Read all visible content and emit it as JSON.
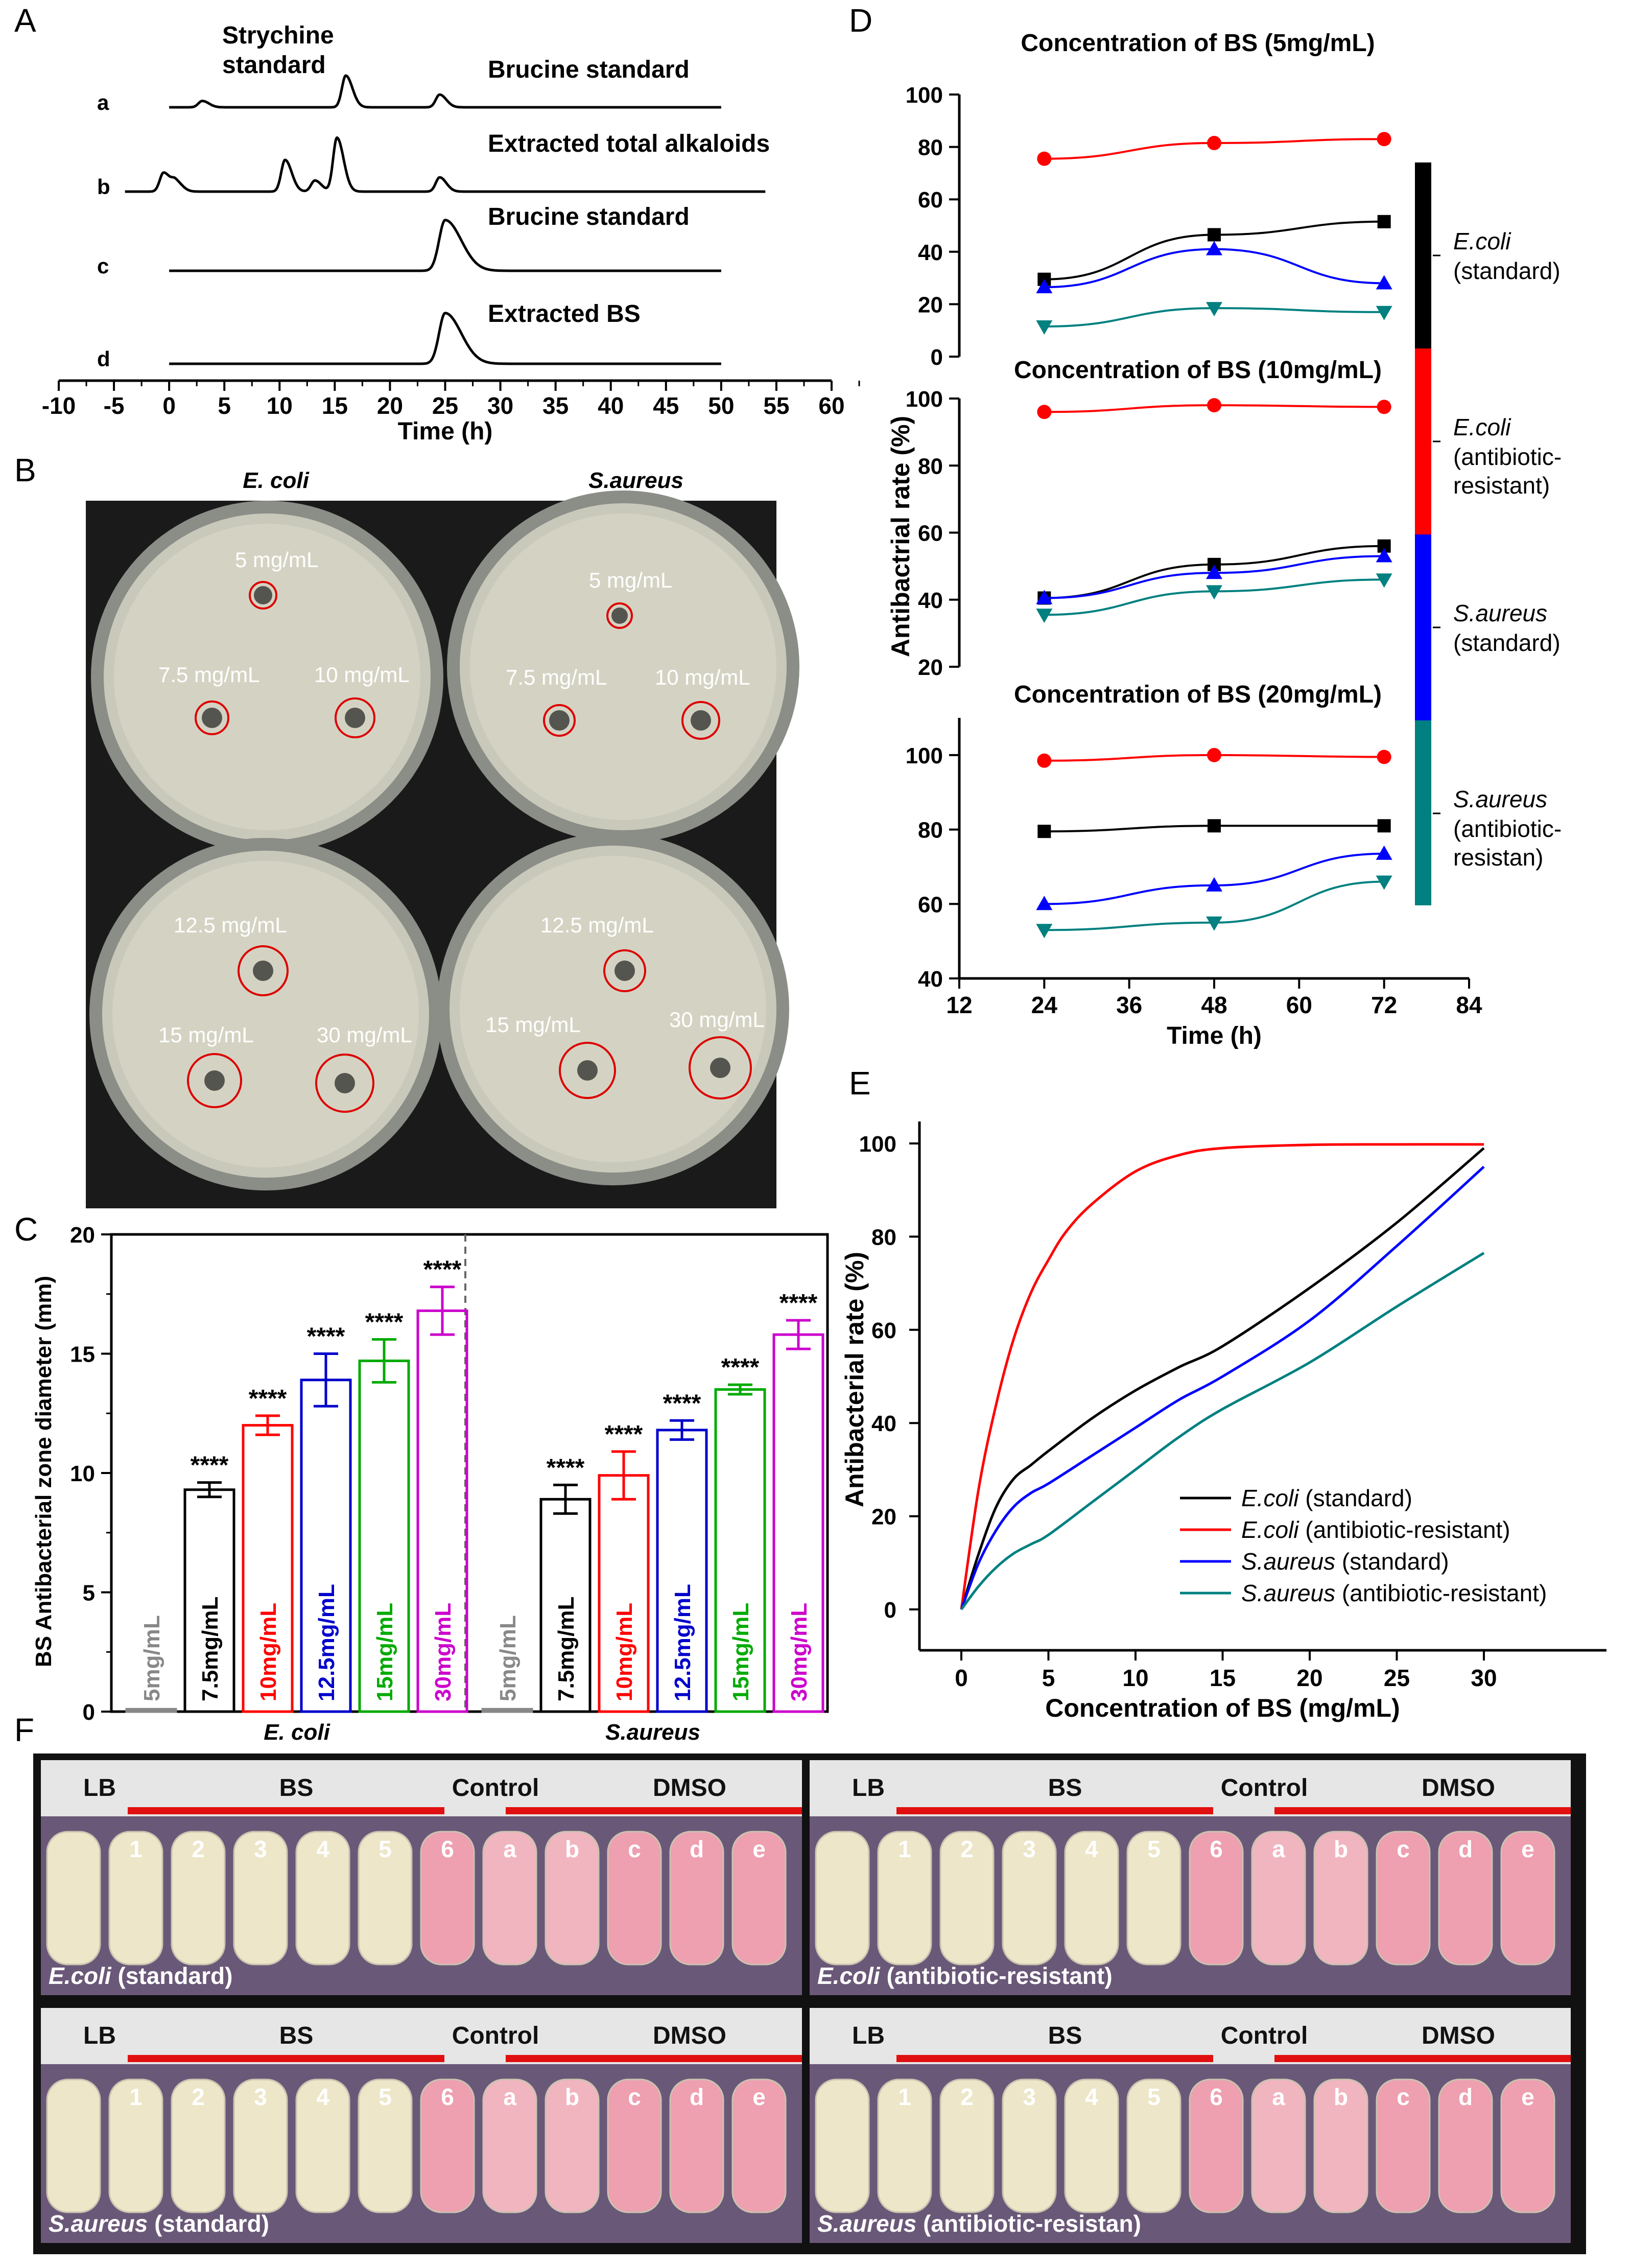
{
  "panel_letters": [
    "A",
    "B",
    "C",
    "D",
    "E",
    "F"
  ],
  "chart_data": [
    {
      "panel": "A",
      "type": "line",
      "xlabel": "Time (h)",
      "xlim": [
        -10,
        60
      ],
      "x_ticks": [
        "-10",
        "-5",
        "0",
        "5",
        "10",
        "15",
        "20",
        "25",
        "30",
        "35",
        "40",
        "45",
        "50",
        "55",
        "60"
      ],
      "traces": [
        {
          "label": "a",
          "annotations": [
            "Strychine\nstandard",
            "Brucine standard"
          ],
          "peaks": [
            {
              "x": 3,
              "h": 0.2
            },
            {
              "x": 16,
              "h": 1.0
            },
            {
              "x": 24.5,
              "h": 0.4
            }
          ],
          "x_range": [
            0,
            50
          ]
        },
        {
          "label": "b",
          "annotations": [
            "Extracted total alkaloids"
          ],
          "peaks": [
            {
              "x": -0.5,
              "h": 0.6
            },
            {
              "x": 0.6,
              "h": 0.3
            },
            {
              "x": 10.5,
              "h": 1.0
            },
            {
              "x": 13.2,
              "h": 0.35
            },
            {
              "x": 15.2,
              "h": 1.7
            },
            {
              "x": 24.5,
              "h": 0.45
            }
          ],
          "x_range": [
            -4,
            54
          ]
        },
        {
          "label": "c",
          "annotations": [
            "Brucine standard"
          ],
          "peaks": [
            {
              "x": 25,
              "h": 1.6
            }
          ],
          "x_range": [
            0,
            50
          ]
        },
        {
          "label": "d",
          "annotations": [
            "Extracted BS"
          ],
          "peaks": [
            {
              "x": 25,
              "h": 1.6
            }
          ],
          "x_range": [
            0,
            50
          ]
        }
      ]
    },
    {
      "panel": "C",
      "type": "bar",
      "ylabel": "BS Antibacterial zone diameter (mm)",
      "ylim": [
        0,
        20
      ],
      "y_ticks": [
        "0",
        "5",
        "10",
        "15",
        "20"
      ],
      "groups": [
        "E. coli",
        "S.aureus"
      ],
      "categories": [
        "5mg/mL",
        "7.5mg/mL",
        "10mg/mL",
        "12.5mg/mL",
        "15mg/mL",
        "30mg/mL"
      ],
      "category_colors": [
        "#888888",
        "#000000",
        "#ff0000",
        "#0000cc",
        "#00aa00",
        "#cc00cc"
      ],
      "series": [
        {
          "group": "E. coli",
          "values": [
            0.1,
            9.3,
            12.0,
            13.9,
            14.7,
            16.8
          ],
          "errors": [
            0,
            0.3,
            0.4,
            1.1,
            0.9,
            1.0
          ],
          "significance": [
            "",
            "****",
            "****",
            "****",
            "****",
            "****"
          ]
        },
        {
          "group": "S.aureus",
          "values": [
            0.1,
            8.9,
            9.9,
            11.8,
            13.5,
            15.8
          ],
          "errors": [
            0,
            0.6,
            1.0,
            0.4,
            0.2,
            0.6
          ],
          "significance": [
            "",
            "****",
            "****",
            "****",
            "****",
            "****"
          ]
        }
      ]
    },
    {
      "panel": "D",
      "type": "line",
      "ylabel": "Antibactrial rate (%)",
      "xlabel": "Time (h)",
      "x": [
        24,
        48,
        72
      ],
      "x_ticks": [
        "12",
        "24",
        "36",
        "48",
        "60",
        "72",
        "84"
      ],
      "xlim": [
        12,
        84
      ],
      "subplots": [
        {
          "title": "Concentration of BS (5mg/mL)",
          "ylim": [
            0,
            100
          ],
          "y_ticks": [
            "0",
            "20",
            "40",
            "60",
            "80",
            "100"
          ],
          "series": [
            {
              "name": "E.coli (standard)",
              "color": "#000000",
              "marker": "square",
              "values": [
                29.5,
                46.5,
                51.5
              ]
            },
            {
              "name": "E.coli (antibiotic-resistant)",
              "color": "#ff0000",
              "marker": "circle",
              "values": [
                75.5,
                81.5,
                83
              ]
            },
            {
              "name": "S.aureus (standard)",
              "color": "#0000ff",
              "marker": "triangle-up",
              "values": [
                26.5,
                41,
                28
              ]
            },
            {
              "name": "S.aureus (antibiotic-resistan)",
              "color": "#008080",
              "marker": "triangle-down",
              "values": [
                11.5,
                18.5,
                17
              ]
            }
          ]
        },
        {
          "title": "Concentration of BS (10mg/mL)",
          "ylim": [
            20,
            100
          ],
          "y_ticks": [
            "20",
            "40",
            "60",
            "80",
            "100"
          ],
          "series": [
            {
              "name": "E.coli (standard)",
              "color": "#000000",
              "marker": "square",
              "values": [
                40.5,
                50.5,
                56
              ]
            },
            {
              "name": "E.coli (antibiotic-resistant)",
              "color": "#ff0000",
              "marker": "circle",
              "values": [
                96,
                98,
                97.5
              ]
            },
            {
              "name": "S.aureus (standard)",
              "color": "#0000ff",
              "marker": "triangle-up",
              "values": [
                40.5,
                48,
                53
              ]
            },
            {
              "name": "S.aureus (antibiotic-resistan)",
              "color": "#008080",
              "marker": "triangle-down",
              "values": [
                35.5,
                42.5,
                46
              ]
            }
          ]
        },
        {
          "title": "Concentration of BS (20mg/mL)",
          "ylim": [
            40,
            110
          ],
          "y_ticks": [
            "40",
            "60",
            "80",
            "100"
          ],
          "series": [
            {
              "name": "E.coli (standard)",
              "color": "#000000",
              "marker": "square",
              "values": [
                79.5,
                81,
                81
              ]
            },
            {
              "name": "E.coli (antibiotic-resistant)",
              "color": "#ff0000",
              "marker": "circle",
              "values": [
                98.5,
                100,
                99.5
              ]
            },
            {
              "name": "S.aureus (standard)",
              "color": "#0000ff",
              "marker": "triangle-up",
              "values": [
                60,
                65,
                73.5
              ]
            },
            {
              "name": "S.aureus (antibiotic-resistan)",
              "color": "#008080",
              "marker": "triangle-down",
              "values": [
                53,
                55,
                66
              ]
            }
          ]
        }
      ],
      "legend_bar": [
        {
          "species": "E.coli",
          "note": "(standard)",
          "color": "#000000"
        },
        {
          "species": "E.coli",
          "note": "(antibiotic-\nresistant)",
          "color": "#ff0000"
        },
        {
          "species": "S.aureus",
          "note": "(standard)",
          "color": "#0000ff"
        },
        {
          "species": "S.aureus",
          "note": "(antibiotic-\nresistan)",
          "color": "#008080"
        }
      ]
    },
    {
      "panel": "E",
      "type": "line",
      "xlabel": "Concentration of BS (mg/mL)",
      "ylabel": "Antibacterial rate (%)",
      "xlim": [
        0,
        30
      ],
      "ylim": [
        0,
        100
      ],
      "x_ticks": [
        "0",
        "5",
        "10",
        "15",
        "20",
        "25",
        "30"
      ],
      "y_ticks": [
        "0",
        "20",
        "40",
        "60",
        "80",
        "100"
      ],
      "series": [
        {
          "name": "E.coli",
          "note": "(standard)",
          "color": "#000000",
          "x": [
            0,
            1,
            2,
            3,
            4,
            5,
            7.5,
            10,
            12.5,
            15,
            20,
            25,
            30
          ],
          "values": [
            0,
            12,
            22,
            28,
            31,
            34,
            41,
            47,
            52,
            56.5,
            69,
            83,
            99
          ]
        },
        {
          "name": "E.coli",
          "note": "(antibiotic-resistant)",
          "color": "#ff0000",
          "x": [
            0,
            1,
            2,
            3,
            4,
            5,
            6,
            7.5,
            10,
            12.5,
            15,
            20,
            25,
            30
          ],
          "values": [
            0,
            26,
            44,
            58,
            68,
            75,
            81,
            87,
            94,
            97.5,
            99,
            99.7,
            99.8,
            99.8
          ]
        },
        {
          "name": "S.aureus",
          "note": "(standard)",
          "color": "#0000ff",
          "x": [
            0,
            1,
            2,
            3,
            4,
            5,
            7.5,
            10,
            12.5,
            15,
            20,
            25,
            30
          ],
          "values": [
            0,
            10,
            17,
            22,
            25,
            27,
            33,
            39,
            45,
            50,
            62,
            78,
            95
          ]
        },
        {
          "name": "S.aureus",
          "note": "(antibiotic-resistant)",
          "color": "#008080",
          "x": [
            0,
            1,
            2,
            3,
            4,
            5,
            7.5,
            10,
            12.5,
            15,
            20,
            25,
            30
          ],
          "values": [
            0,
            5,
            9,
            12,
            14,
            16,
            23,
            30,
            37,
            43,
            53,
            65,
            76.5
          ]
        }
      ]
    }
  ],
  "panel_b": {
    "plate_titles": [
      "E. coli",
      "S.aureus"
    ],
    "plates": [
      {
        "labels": [
          "5 mg/mL",
          "7.5 mg/mL",
          "10 mg/mL"
        ]
      },
      {
        "labels": [
          "5 mg/mL",
          "7.5 mg/mL",
          "10 mg/mL"
        ]
      },
      {
        "labels": [
          "12.5 mg/mL",
          "15 mg/mL",
          "30 mg/mL"
        ]
      },
      {
        "labels": [
          "12.5 mg/mL",
          "15 mg/mL",
          "30 mg/mL"
        ]
      }
    ]
  },
  "panel_f": {
    "cells": [
      {
        "header": [
          "LB",
          "BS",
          "Control",
          "DMSO"
        ],
        "tubes": [
          "1",
          "2",
          "3",
          "4",
          "5",
          "6",
          "a",
          "b",
          "c",
          "d",
          "e"
        ],
        "caption_species": "E.coli",
        "caption_note": " (standard)"
      },
      {
        "header": [
          "LB",
          "BS",
          "Control",
          "DMSO"
        ],
        "tubes": [
          "1",
          "2",
          "3",
          "4",
          "5",
          "6",
          "a",
          "b",
          "c",
          "d",
          "e"
        ],
        "caption_species": "E.coli",
        "caption_note": " (antibiotic-resistant)"
      },
      {
        "header": [
          "LB",
          "BS",
          "Control",
          "DMSO"
        ],
        "tubes": [
          "1",
          "2",
          "3",
          "4",
          "5",
          "6",
          "a",
          "b",
          "c",
          "d",
          "e"
        ],
        "caption_species": "S.aureus",
        "caption_note": " (standard)"
      },
      {
        "header": [
          "LB",
          "BS",
          "Control",
          "DMSO"
        ],
        "tubes": [
          "1",
          "2",
          "3",
          "4",
          "5",
          "6",
          "a",
          "b",
          "c",
          "d",
          "e"
        ],
        "caption_species": "S.aureus",
        "caption_note": " (antibiotic-resistan)"
      }
    ]
  }
}
